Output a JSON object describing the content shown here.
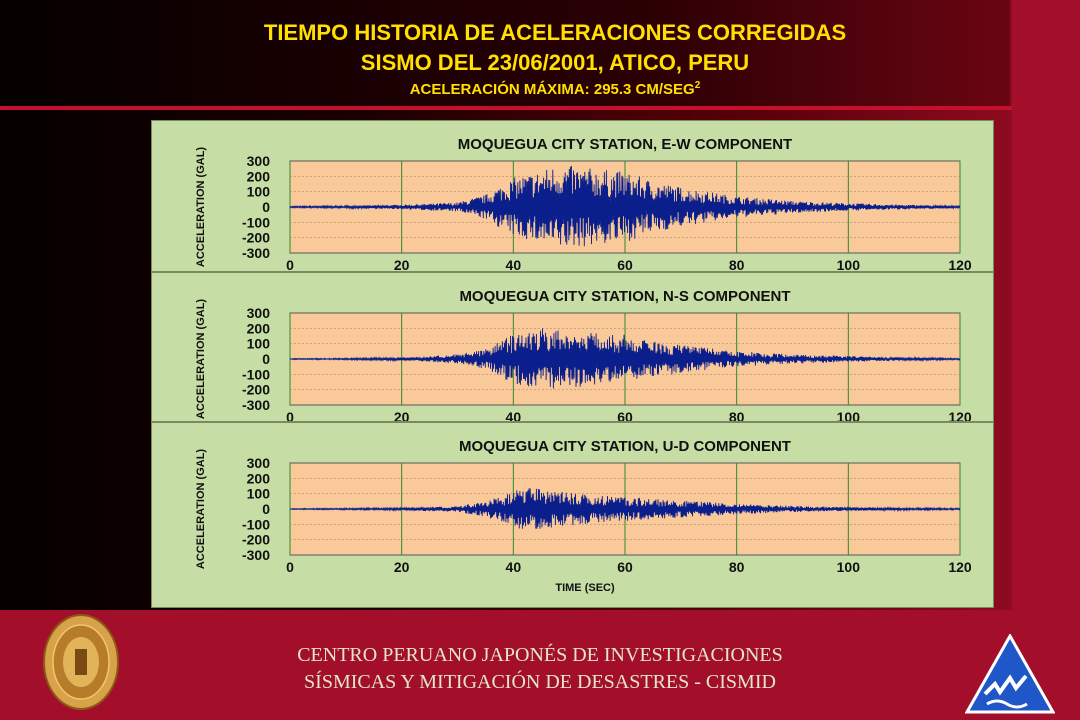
{
  "header": {
    "title_line1": "TIEMPO HISTORIA DE ACELERACIONES CORREGIDAS",
    "title_line2": "SISMO DEL 23/06/2001, ATICO, PERU",
    "title_line3": "ACELERACIÓN MÁXIMA: 295.3 CM/SEG",
    "title_line3_sup": "2"
  },
  "footer": {
    "line1": "CENTRO PERUANO JAPONÉS DE INVESTIGACIONES",
    "line2": "SÍSMICAS Y MITIGACIÓN DE DESASTRES - CISMID"
  },
  "colors": {
    "plot_bg": "#f9c99a",
    "panel_bg": "#c6dea5",
    "trace": "#0a1f8c",
    "title_text": "#ffe000",
    "grid": "#2d8a2d"
  },
  "icons": {
    "seal": "university-seal-icon",
    "logo": "cismid-logo-icon"
  },
  "chart_data": [
    {
      "type": "line",
      "title": "MOQUEGUA CITY  STATION, E-W COMPONENT",
      "xlabel": "",
      "ylabel": "ACCELERATION (GAL)",
      "xlim": [
        0,
        120
      ],
      "ylim": [
        -300,
        300
      ],
      "x_ticks": [
        "0",
        "20",
        "40",
        "60",
        "80",
        "100",
        "120"
      ],
      "y_ticks": [
        "300",
        "200",
        "100",
        "0",
        "-100",
        "-200",
        "-300"
      ],
      "grid": true,
      "series": [
        {
          "envelope": [
            [
              0,
              5
            ],
            [
              10,
              8
            ],
            [
              20,
              15
            ],
            [
              30,
              30
            ],
            [
              35,
              80
            ],
            [
              40,
              190
            ],
            [
              45,
              240
            ],
            [
              48,
              280
            ],
            [
              50,
              270
            ],
            [
              55,
              250
            ],
            [
              60,
              230
            ],
            [
              65,
              170
            ],
            [
              70,
              130
            ],
            [
              80,
              70
            ],
            [
              90,
              40
            ],
            [
              100,
              25
            ],
            [
              110,
              15
            ],
            [
              120,
              8
            ]
          ]
        }
      ]
    },
    {
      "type": "line",
      "title": "MOQUEGUA CITY  STATION, N-S COMPONENT",
      "xlabel": "",
      "ylabel": "ACCELERATION (GAL)",
      "xlim": [
        0,
        120
      ],
      "ylim": [
        -300,
        300
      ],
      "x_ticks": [
        "0",
        "20",
        "40",
        "60",
        "80",
        "100",
        "120"
      ],
      "y_ticks": [
        "300",
        "200",
        "100",
        "0",
        "-100",
        "-200",
        "-300"
      ],
      "grid": true,
      "series": [
        {
          "envelope": [
            [
              0,
              3
            ],
            [
              10,
              5
            ],
            [
              20,
              10
            ],
            [
              30,
              30
            ],
            [
              35,
              70
            ],
            [
              40,
              160
            ],
            [
              45,
              200
            ],
            [
              50,
              190
            ],
            [
              55,
              170
            ],
            [
              60,
              160
            ],
            [
              65,
              120
            ],
            [
              70,
              90
            ],
            [
              80,
              50
            ],
            [
              90,
              30
            ],
            [
              100,
              20
            ],
            [
              110,
              10
            ],
            [
              120,
              5
            ]
          ]
        }
      ]
    },
    {
      "type": "line",
      "title": "MOQUEGUA CITY  STATION, U-D COMPONENT",
      "xlabel": "TIME (SEC)",
      "ylabel": "ACCELERATION (GAL)",
      "xlim": [
        0,
        120
      ],
      "ylim": [
        -300,
        300
      ],
      "x_ticks": [
        "0",
        "20",
        "40",
        "60",
        "80",
        "100",
        "120"
      ],
      "y_ticks": [
        "300",
        "200",
        "100",
        "0",
        "-100",
        "-200",
        "-300"
      ],
      "grid": true,
      "series": [
        {
          "envelope": [
            [
              0,
              3
            ],
            [
              10,
              5
            ],
            [
              20,
              8
            ],
            [
              30,
              20
            ],
            [
              35,
              50
            ],
            [
              40,
              110
            ],
            [
              42,
              150
            ],
            [
              45,
              130
            ],
            [
              50,
              110
            ],
            [
              55,
              90
            ],
            [
              60,
              80
            ],
            [
              70,
              55
            ],
            [
              80,
              35
            ],
            [
              90,
              20
            ],
            [
              100,
              12
            ],
            [
              110,
              8
            ],
            [
              120,
              5
            ]
          ]
        }
      ]
    }
  ]
}
